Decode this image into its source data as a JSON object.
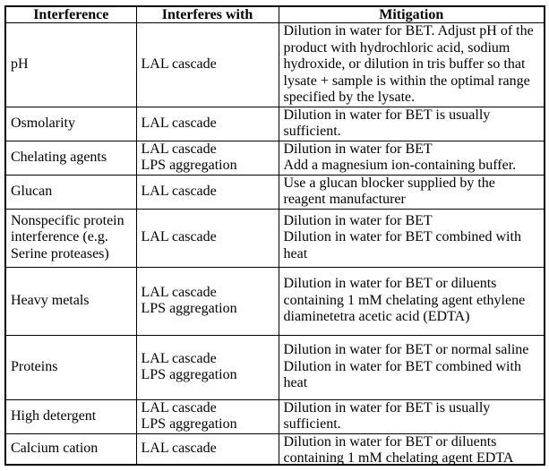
{
  "table": {
    "headers": [
      {
        "id": "interference",
        "label": "Interference"
      },
      {
        "id": "interferes_with",
        "label": "Interferes with"
      },
      {
        "id": "mitigation",
        "label": "Mitigation"
      }
    ],
    "rows": [
      {
        "interference": [
          "pH"
        ],
        "interferes_with": [
          "LAL cascade"
        ],
        "mitigation": [
          "Dilution in water for BET. Adjust pH of the product with hydrochloric acid, sodium hydroxide, or dilution in tris buffer so that lysate + sample is within the optimal range specified by the lysate."
        ]
      },
      {
        "interference": [
          "Osmolarity"
        ],
        "interferes_with": [
          "LAL cascade"
        ],
        "mitigation": [
          "Dilution in water for BET is usually sufficient."
        ]
      },
      {
        "interference": [
          "Chelating agents"
        ],
        "interferes_with": [
          "LAL cascade",
          "LPS aggregation"
        ],
        "mitigation": [
          "Dilution in water for BET",
          "Add a magnesium ion-containing buffer."
        ]
      },
      {
        "interference": [
          "Glucan"
        ],
        "interferes_with": [
          "LAL cascade"
        ],
        "mitigation": [
          "Use a glucan blocker supplied by the reagent manufacturer"
        ]
      },
      {
        "interference": [
          "Nonspecific protein interference (e.g. Serine proteases)"
        ],
        "interferes_with": [
          "LAL cascade"
        ],
        "mitigation": [
          "Dilution in water for BET",
          "Dilution in water for BET combined with heat"
        ]
      },
      {
        "interference": [
          "Heavy metals"
        ],
        "interferes_with": [
          "LAL cascade",
          "LPS aggregation"
        ],
        "mitigation": [
          "Dilution in water for BET or diluents containing 1 mM chelating agent ethylene diaminetetra acetic acid (EDTA)"
        ]
      },
      {
        "interference": [
          "Proteins"
        ],
        "interferes_with": [
          "LAL cascade",
          "LPS aggregation"
        ],
        "mitigation": [
          "Dilution in water for BET or normal saline",
          "Dilution in water for BET combined with heat"
        ]
      },
      {
        "interference": [
          "High detergent"
        ],
        "interferes_with": [
          "LAL cascade",
          "LPS aggregation"
        ],
        "mitigation": [
          "Dilution in water for BET is usually sufficient."
        ]
      },
      {
        "interference": [
          "Calcium cation"
        ],
        "interferes_with": [
          "LAL cascade"
        ],
        "mitigation": [
          "Dilution in water for BET or diluents containing 1 mM chelating agent EDTA"
        ]
      }
    ],
    "colors": {
      "border": "#000000",
      "text": "#000000",
      "background": "#ffffff"
    }
  }
}
